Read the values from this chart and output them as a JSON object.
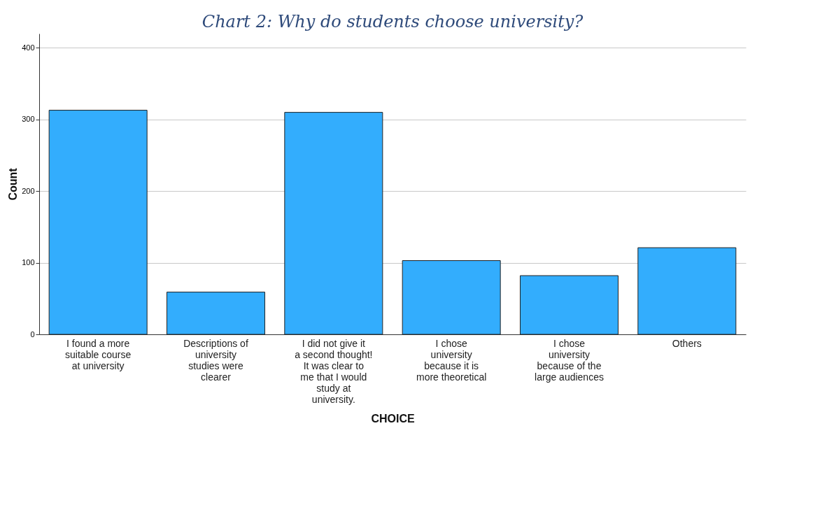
{
  "chart_data": {
    "type": "bar",
    "title": "Chart 2: Why do students choose university?",
    "xlabel": "CHOICE",
    "ylabel": "Count",
    "categories": [
      "I found a more suitable course at university",
      "Descriptions of university studies were clearer",
      "I did not give it a second thought! It was clear to me that I would study at university.",
      "I chose university because it is more theoretical",
      "I chose university because of the large audiences",
      "Others"
    ],
    "values": [
      313,
      59,
      310,
      103,
      82,
      121
    ],
    "color": "#33adfd",
    "ylim": [
      0,
      420
    ],
    "yticks": [
      0,
      100,
      200,
      300,
      400
    ],
    "grid": "y"
  }
}
